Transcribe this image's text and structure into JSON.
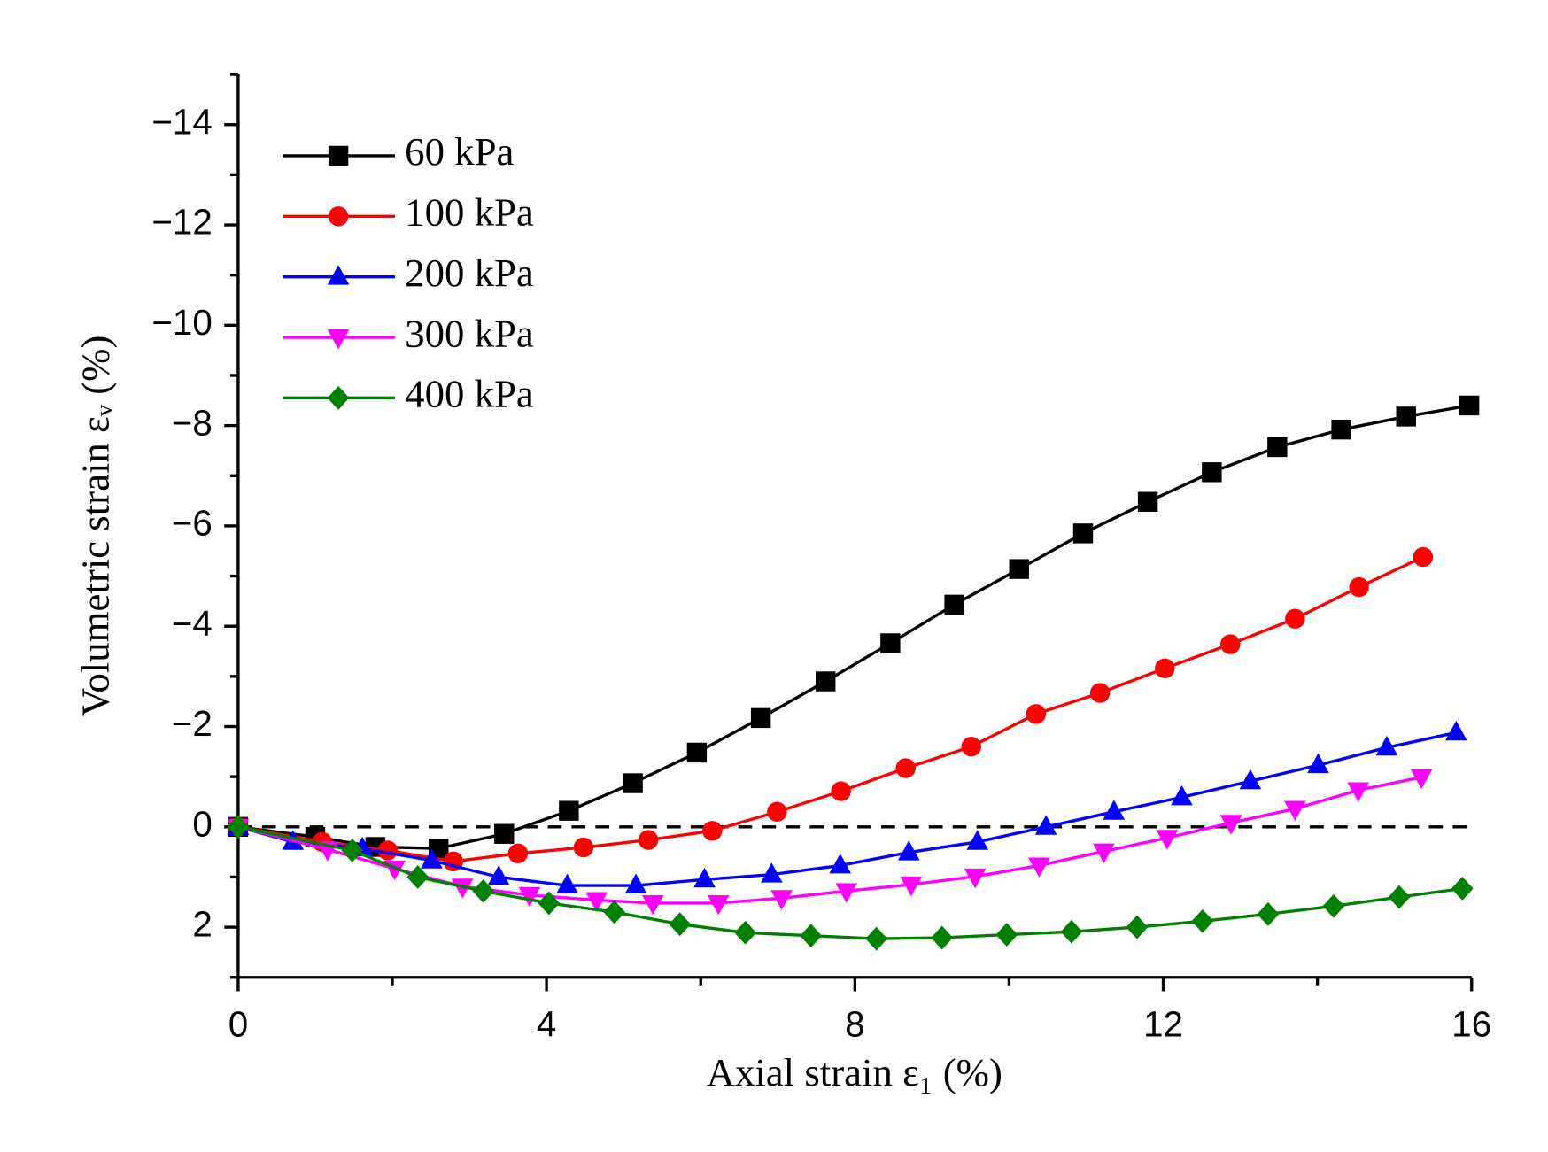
{
  "chart_data": {
    "type": "line",
    "xlabel": "Axial strain ε₁ (%)",
    "ylabel": "Volumetric strain εᵥ (%)",
    "xlim": [
      0,
      16
    ],
    "xticks": [
      0,
      4,
      8,
      12,
      16
    ],
    "xminorticks": [
      2,
      6,
      10,
      14
    ],
    "ylim": [
      3,
      -15
    ],
    "yticks": [
      -14,
      -12,
      -10,
      -8,
      -6,
      -4,
      -2,
      0,
      2
    ],
    "yminorticks": [
      -15,
      -13,
      -11,
      -9,
      -7,
      -5,
      -3,
      -1,
      1,
      3
    ],
    "hline": 0,
    "legend": "upper left",
    "series": [
      {
        "name": "60 kPa",
        "color": "#000000",
        "marker": "square",
        "x": [
          0,
          1.0,
          1.78,
          2.6,
          3.45,
          4.29,
          5.12,
          5.95,
          6.78,
          7.62,
          8.46,
          9.29,
          10.13,
          10.96,
          11.8,
          12.63,
          13.48,
          14.31,
          15.15,
          15.97
        ],
        "values": [
          0,
          0.2,
          0.4,
          0.43,
          0.14,
          -0.32,
          -0.87,
          -1.48,
          -2.17,
          -2.9,
          -3.66,
          -4.43,
          -5.14,
          -5.85,
          -6.48,
          -7.07,
          -7.57,
          -7.92,
          -8.18,
          -8.4
        ]
      },
      {
        "name": "100 kPa",
        "color": "#ff0000",
        "marker": "circle",
        "x": [
          0,
          1.09,
          1.94,
          2.79,
          3.63,
          4.48,
          5.32,
          6.15,
          6.99,
          7.82,
          8.66,
          9.51,
          10.35,
          11.18,
          12.02,
          12.87,
          13.71,
          14.54,
          15.37
        ],
        "values": [
          0,
          0.3,
          0.47,
          0.69,
          0.53,
          0.41,
          0.26,
          0.08,
          -0.3,
          -0.71,
          -1.17,
          -1.6,
          -2.25,
          -2.67,
          -3.16,
          -3.64,
          -4.15,
          -4.78,
          -5.38
        ]
      },
      {
        "name": "200 kPa",
        "color": "#0000ff",
        "marker": "triangle-up",
        "x": [
          0,
          0.71,
          1.61,
          2.51,
          3.38,
          4.27,
          5.16,
          6.05,
          6.92,
          7.81,
          8.7,
          9.59,
          10.48,
          11.36,
          12.24,
          13.13,
          14.01,
          14.9,
          15.8
        ],
        "values": [
          0,
          0.3,
          0.43,
          0.67,
          1.0,
          1.17,
          1.17,
          1.05,
          0.95,
          0.77,
          0.51,
          0.3,
          0,
          -0.3,
          -0.59,
          -0.91,
          -1.23,
          -1.58,
          -1.88
        ]
      },
      {
        "name": "300 kPa",
        "color": "#ff00ff",
        "marker": "triangle-down",
        "x": [
          0,
          1.16,
          2.03,
          2.91,
          3.78,
          4.65,
          5.38,
          6.23,
          7.05,
          7.89,
          8.73,
          9.56,
          10.39,
          11.23,
          12.05,
          12.88,
          13.71,
          14.53,
          15.35
        ],
        "values": [
          0,
          0.45,
          0.83,
          1.19,
          1.36,
          1.46,
          1.52,
          1.52,
          1.42,
          1.28,
          1.15,
          0.99,
          0.77,
          0.49,
          0.22,
          -0.08,
          -0.36,
          -0.73,
          -0.99
        ]
      },
      {
        "name": "400 kPa",
        "color": "#008000",
        "marker": "diamond",
        "x": [
          0,
          1.48,
          2.33,
          3.18,
          4.03,
          4.88,
          5.73,
          6.58,
          7.43,
          8.28,
          9.13,
          9.97,
          10.81,
          11.66,
          12.51,
          13.36,
          14.21,
          15.06,
          15.88
        ],
        "values": [
          0,
          0.47,
          1.0,
          1.28,
          1.52,
          1.7,
          1.94,
          2.11,
          2.17,
          2.23,
          2.21,
          2.15,
          2.09,
          2.0,
          1.88,
          1.74,
          1.58,
          1.4,
          1.23
        ]
      }
    ]
  }
}
